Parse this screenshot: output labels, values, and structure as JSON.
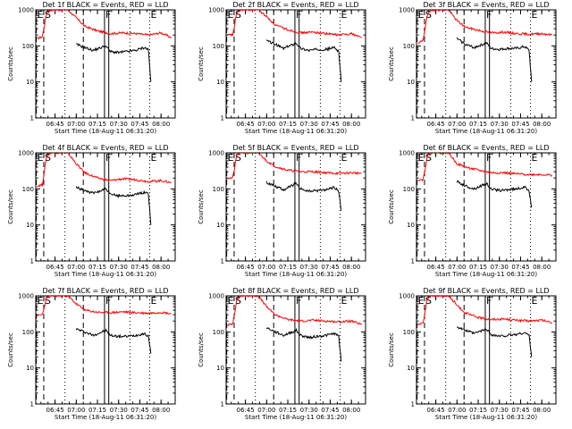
{
  "chart_data": {
    "type": "line",
    "layout": "3x3 grid",
    "y_scale": "log",
    "ylim": [
      1,
      1000
    ],
    "y_ticks": [
      "1",
      "10",
      "100",
      "1000"
    ],
    "ylabel": "Counts/sec",
    "xlabel": "Start Time (18-Aug-11 06:31:20)",
    "x_ticks": [
      "06:45",
      "07:00",
      "07:15",
      "07:30",
      "07:45",
      "08:00"
    ],
    "xlim": [
      "06:31:20",
      "08:10"
    ],
    "event_markers": [
      {
        "label": "E",
        "time": "06:31:45",
        "style": "dashed"
      },
      {
        "label": "S",
        "time": "06:37",
        "style": "dashed"
      },
      {
        "label": "",
        "time": "06:52",
        "style": "dotted"
      },
      {
        "label": "",
        "time": "07:05",
        "style": "dashed"
      },
      {
        "label": "F",
        "time": "07:20",
        "style": "solid"
      },
      {
        "label": "",
        "time": "07:23",
        "style": "solid"
      },
      {
        "label": "",
        "time": "07:38",
        "style": "dotted"
      },
      {
        "label": "E",
        "time": "07:52",
        "style": "dotted"
      }
    ],
    "series_colors": {
      "events": "#000000",
      "lld": "#ff0000"
    },
    "panels": [
      {
        "title": "Det 1f BLACK = Events, RED = LLD",
        "red": [
          [
            6.54,
            160
          ],
          [
            6.6,
            180
          ],
          [
            6.65,
            800
          ],
          [
            6.7,
            1000
          ],
          [
            6.9,
            1000
          ],
          [
            7.0,
            600
          ],
          [
            7.1,
            350
          ],
          [
            7.25,
            260
          ],
          [
            7.4,
            220
          ],
          [
            7.55,
            230
          ],
          [
            7.7,
            220
          ],
          [
            7.85,
            200
          ],
          [
            8.0,
            230
          ],
          [
            8.12,
            170
          ]
        ],
        "black": [
          [
            7.0,
            110
          ],
          [
            7.1,
            90
          ],
          [
            7.2,
            75
          ],
          [
            7.35,
            100
          ],
          [
            7.4,
            70
          ],
          [
            7.5,
            65
          ],
          [
            7.6,
            70
          ],
          [
            7.7,
            75
          ],
          [
            7.8,
            90
          ],
          [
            7.85,
            80
          ],
          [
            7.88,
            10
          ]
        ]
      },
      {
        "title": "Det 2f BLACK = Events, RED = LLD",
        "red": [
          [
            6.54,
            200
          ],
          [
            6.6,
            200
          ],
          [
            6.65,
            850
          ],
          [
            6.7,
            1000
          ],
          [
            6.9,
            1000
          ],
          [
            7.0,
            650
          ],
          [
            7.1,
            380
          ],
          [
            7.25,
            280
          ],
          [
            7.4,
            230
          ],
          [
            7.55,
            240
          ],
          [
            7.7,
            220
          ],
          [
            7.85,
            200
          ],
          [
            8.0,
            220
          ],
          [
            8.12,
            170
          ]
        ],
        "black": [
          [
            7.0,
            140
          ],
          [
            7.1,
            110
          ],
          [
            7.2,
            85
          ],
          [
            7.35,
            120
          ],
          [
            7.4,
            85
          ],
          [
            7.5,
            75
          ],
          [
            7.6,
            80
          ],
          [
            7.7,
            80
          ],
          [
            7.8,
            90
          ],
          [
            7.85,
            70
          ],
          [
            7.88,
            10
          ]
        ]
      },
      {
        "title": "Det 3f BLACK = Events, RED = LLD",
        "red": [
          [
            6.54,
            110
          ],
          [
            6.6,
            150
          ],
          [
            6.65,
            700
          ],
          [
            6.7,
            1000
          ],
          [
            6.9,
            1000
          ],
          [
            7.0,
            500
          ],
          [
            7.1,
            330
          ],
          [
            7.25,
            270
          ],
          [
            7.4,
            230
          ],
          [
            7.55,
            240
          ],
          [
            7.7,
            220
          ],
          [
            7.85,
            210
          ],
          [
            8.0,
            220
          ],
          [
            8.12,
            200
          ]
        ],
        "black": [
          [
            7.0,
            160
          ],
          [
            7.1,
            110
          ],
          [
            7.2,
            90
          ],
          [
            7.35,
            120
          ],
          [
            7.4,
            85
          ],
          [
            7.5,
            80
          ],
          [
            7.6,
            85
          ],
          [
            7.7,
            85
          ],
          [
            7.8,
            95
          ],
          [
            7.85,
            75
          ],
          [
            7.88,
            10
          ]
        ]
      },
      {
        "title": "Det 4f BLACK = Events, RED = LLD",
        "red": [
          [
            6.54,
            120
          ],
          [
            6.6,
            130
          ],
          [
            6.65,
            800
          ],
          [
            6.7,
            1000
          ],
          [
            6.9,
            1000
          ],
          [
            7.0,
            500
          ],
          [
            7.1,
            280
          ],
          [
            7.25,
            200
          ],
          [
            7.4,
            170
          ],
          [
            7.55,
            190
          ],
          [
            7.7,
            180
          ],
          [
            7.85,
            160
          ],
          [
            8.0,
            170
          ],
          [
            8.12,
            150
          ]
        ],
        "black": [
          [
            7.0,
            110
          ],
          [
            7.1,
            90
          ],
          [
            7.2,
            75
          ],
          [
            7.35,
            100
          ],
          [
            7.4,
            70
          ],
          [
            7.5,
            65
          ],
          [
            7.6,
            65
          ],
          [
            7.7,
            70
          ],
          [
            7.8,
            80
          ],
          [
            7.85,
            75
          ],
          [
            7.88,
            10
          ]
        ]
      },
      {
        "title": "Det 5f BLACK = Events, RED = LLD",
        "red": [
          [
            6.54,
            200
          ],
          [
            6.6,
            200
          ],
          [
            6.65,
            900
          ],
          [
            6.7,
            1000
          ],
          [
            6.9,
            1000
          ],
          [
            7.0,
            600
          ],
          [
            7.1,
            420
          ],
          [
            7.25,
            330
          ],
          [
            7.4,
            300
          ],
          [
            7.55,
            300
          ],
          [
            7.7,
            280
          ],
          [
            7.85,
            270
          ],
          [
            8.0,
            280
          ],
          [
            8.12,
            270
          ]
        ],
        "black": [
          [
            7.0,
            150
          ],
          [
            7.1,
            120
          ],
          [
            7.2,
            95
          ],
          [
            7.35,
            140
          ],
          [
            7.4,
            100
          ],
          [
            7.5,
            85
          ],
          [
            7.6,
            90
          ],
          [
            7.7,
            95
          ],
          [
            7.8,
            110
          ],
          [
            7.85,
            85
          ],
          [
            7.88,
            25
          ]
        ]
      },
      {
        "title": "Det 6f BLACK = Events, RED = LLD",
        "red": [
          [
            6.54,
            180
          ],
          [
            6.6,
            180
          ],
          [
            6.65,
            800
          ],
          [
            6.7,
            1000
          ],
          [
            6.9,
            1000
          ],
          [
            7.0,
            500
          ],
          [
            7.1,
            400
          ],
          [
            7.25,
            330
          ],
          [
            7.4,
            280
          ],
          [
            7.55,
            280
          ],
          [
            7.7,
            260
          ],
          [
            7.85,
            250
          ],
          [
            8.0,
            250
          ],
          [
            8.12,
            240
          ]
        ],
        "black": [
          [
            7.0,
            160
          ],
          [
            7.1,
            120
          ],
          [
            7.2,
            100
          ],
          [
            7.35,
            140
          ],
          [
            7.4,
            100
          ],
          [
            7.5,
            90
          ],
          [
            7.6,
            95
          ],
          [
            7.7,
            100
          ],
          [
            7.8,
            110
          ],
          [
            7.85,
            90
          ],
          [
            7.88,
            30
          ]
        ]
      },
      {
        "title": "Det 7f BLACK = Events, RED = LLD",
        "red": [
          [
            6.54,
            280
          ],
          [
            6.6,
            300
          ],
          [
            6.65,
            900
          ],
          [
            6.7,
            1000
          ],
          [
            6.9,
            1000
          ],
          [
            7.0,
            600
          ],
          [
            7.1,
            400
          ],
          [
            7.25,
            350
          ],
          [
            7.4,
            340
          ],
          [
            7.55,
            360
          ],
          [
            7.7,
            340
          ],
          [
            7.85,
            330
          ],
          [
            8.0,
            350
          ],
          [
            8.12,
            320
          ]
        ],
        "black": [
          [
            7.0,
            120
          ],
          [
            7.1,
            100
          ],
          [
            7.2,
            80
          ],
          [
            7.35,
            110
          ],
          [
            7.4,
            80
          ],
          [
            7.5,
            75
          ],
          [
            7.6,
            75
          ],
          [
            7.7,
            80
          ],
          [
            7.8,
            90
          ],
          [
            7.85,
            75
          ],
          [
            7.88,
            25
          ]
        ]
      },
      {
        "title": "Det 8f BLACK = Events, RED = LLD",
        "red": [
          [
            6.54,
            150
          ],
          [
            6.6,
            170
          ],
          [
            6.65,
            800
          ],
          [
            6.7,
            1000
          ],
          [
            6.9,
            1000
          ],
          [
            7.0,
            500
          ],
          [
            7.1,
            300
          ],
          [
            7.25,
            220
          ],
          [
            7.4,
            200
          ],
          [
            7.55,
            210
          ],
          [
            7.7,
            200
          ],
          [
            7.85,
            190
          ],
          [
            8.0,
            200
          ],
          [
            8.12,
            160
          ]
        ],
        "black": [
          [
            7.0,
            130
          ],
          [
            7.1,
            100
          ],
          [
            7.2,
            80
          ],
          [
            7.35,
            110
          ],
          [
            7.4,
            80
          ],
          [
            7.5,
            70
          ],
          [
            7.6,
            75
          ],
          [
            7.7,
            80
          ],
          [
            7.8,
            90
          ],
          [
            7.85,
            75
          ],
          [
            7.88,
            15
          ]
        ]
      },
      {
        "title": "Det 9f BLACK = Events, RED = LLD",
        "red": [
          [
            6.54,
            160
          ],
          [
            6.6,
            180
          ],
          [
            6.65,
            850
          ],
          [
            6.7,
            1000
          ],
          [
            6.9,
            1000
          ],
          [
            7.0,
            550
          ],
          [
            7.1,
            330
          ],
          [
            7.25,
            250
          ],
          [
            7.4,
            220
          ],
          [
            7.55,
            230
          ],
          [
            7.7,
            210
          ],
          [
            7.85,
            200
          ],
          [
            8.0,
            210
          ],
          [
            8.12,
            180
          ]
        ],
        "black": [
          [
            7.0,
            140
          ],
          [
            7.1,
            110
          ],
          [
            7.2,
            90
          ],
          [
            7.35,
            120
          ],
          [
            7.4,
            85
          ],
          [
            7.5,
            75
          ],
          [
            7.6,
            80
          ],
          [
            7.7,
            85
          ],
          [
            7.8,
            95
          ],
          [
            7.85,
            80
          ],
          [
            7.88,
            20
          ]
        ]
      }
    ]
  }
}
